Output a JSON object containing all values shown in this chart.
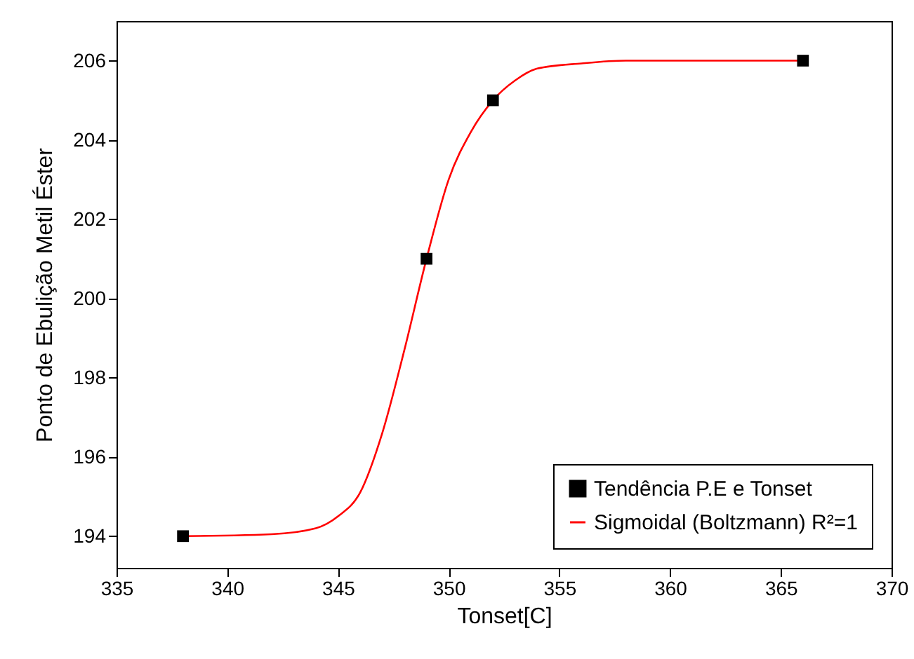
{
  "chart_data": {
    "type": "scatter",
    "xlabel": "Tonset[C]",
    "ylabel": "Ponto de Ebulição Metil Éster",
    "xlim": [
      335,
      370
    ],
    "xticks": [
      335,
      340,
      345,
      350,
      355,
      360,
      365,
      370
    ],
    "ylim": [
      193.2,
      207
    ],
    "yticks": [
      194,
      196,
      198,
      200,
      202,
      204,
      206
    ],
    "grid": false,
    "legend": "bottom right",
    "series": [
      {
        "name": "Tendência P.E e Tonset",
        "marker": "square",
        "color": "#000000",
        "x": [
          338,
          349,
          352,
          366
        ],
        "values": [
          194,
          201,
          205,
          206
        ]
      },
      {
        "name": "Sigmoidal (Boltzmann) R²=1",
        "type": "line",
        "color": "#ff0000",
        "line_style": "solid",
        "marker": "none",
        "x": [
          338,
          342,
          344,
          345,
          346,
          347,
          348,
          349,
          350,
          351,
          352,
          353,
          354,
          356,
          358,
          366
        ],
        "values": [
          194,
          194.05,
          194.2,
          194.5,
          195.1,
          196.6,
          198.7,
          201,
          203,
          204.2,
          205,
          205.5,
          205.8,
          205.93,
          206,
          206
        ]
      }
    ]
  }
}
